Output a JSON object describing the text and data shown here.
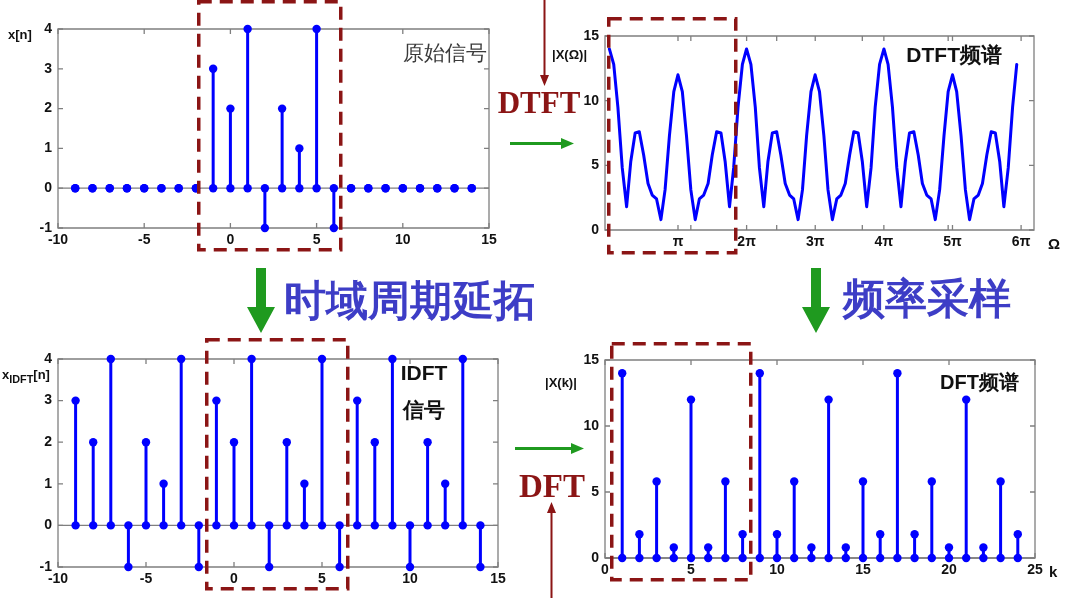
{
  "chart_data": [
    {
      "type": "lollipop",
      "title": "原始信号",
      "ylabel": "x[n]",
      "x": [
        -9,
        -8,
        -7,
        -6,
        -5,
        -4,
        -3,
        -2,
        -1,
        0,
        1,
        2,
        3,
        4,
        5,
        6,
        7,
        8,
        9,
        10,
        11,
        12,
        13,
        14
      ],
      "series": [
        {
          "color": "#0000ff",
          "values": [
            0,
            0,
            0,
            0,
            0,
            0,
            0,
            0,
            3,
            2,
            4,
            -1,
            2,
            1,
            4,
            -1,
            0,
            0,
            0,
            0,
            0,
            0,
            0,
            0
          ]
        },
        {
          "type": "scatter",
          "color": "#0000ff",
          "values": [
            0,
            0,
            0,
            0,
            0,
            0,
            0,
            0,
            0,
            0,
            0,
            0,
            0,
            0,
            0,
            0,
            0,
            0,
            0,
            0,
            0,
            0,
            0,
            0
          ]
        }
      ],
      "marker": "circle",
      "xlim": [
        -10,
        15
      ],
      "xticks": [
        -10,
        -5,
        0,
        5,
        10,
        15
      ],
      "ylim": [
        -1,
        4
      ],
      "yticks": [
        -1,
        0,
        1,
        2,
        3,
        4
      ]
    },
    {
      "type": "line",
      "title": "DTFT频谱",
      "ylabel": "|X(Ω)|",
      "xlabel": "Ω",
      "annotations": [
        "DTFT"
      ],
      "x": [
        0,
        0.2,
        0.39,
        0.59,
        0.79,
        0.98,
        1.18,
        1.37,
        1.57,
        1.77,
        1.96,
        2.16,
        2.36,
        2.55,
        2.75,
        2.95,
        3.14,
        3.34,
        3.53,
        3.73,
        3.93,
        4.12,
        4.32,
        4.52,
        4.71,
        4.91,
        5.11,
        5.3,
        5.5,
        5.69,
        5.89,
        6.09,
        6.28,
        6.48,
        6.68,
        6.87,
        7.07,
        7.26,
        7.46,
        7.66,
        7.85,
        8.05,
        8.25,
        8.44,
        8.64,
        8.84,
        9.03,
        9.23,
        9.42,
        9.62,
        9.82,
        10.01,
        10.21,
        10.41,
        10.6,
        10.8,
        11,
        11.19,
        11.39,
        11.58,
        11.78,
        11.98,
        12.17,
        12.37,
        12.57,
        12.76,
        12.96,
        13.16,
        13.35,
        13.55,
        13.74,
        13.94,
        14.14,
        14.33,
        14.53,
        14.73,
        14.92,
        15.12,
        15.32,
        15.51,
        15.71,
        15.9,
        16.1,
        16.3,
        16.49,
        16.69,
        16.89,
        17.08,
        17.28,
        17.48,
        17.67,
        17.87,
        18.06,
        18.26,
        18.46,
        18.65
      ],
      "values": [
        14,
        12.8,
        9.5,
        4.8,
        1.8,
        5.3,
        7.5,
        7.6,
        5.8,
        3.6,
        2.7,
        2.4,
        0.8,
        3.1,
        7.3,
        10.7,
        12,
        10.7,
        7.3,
        3.1,
        0.8,
        2.4,
        2.7,
        3.6,
        5.8,
        7.6,
        7.5,
        5.3,
        1.8,
        4.8,
        9.5,
        12.8,
        14,
        12.8,
        9.5,
        4.8,
        1.8,
        5.3,
        7.5,
        7.6,
        5.8,
        3.6,
        2.7,
        2.4,
        0.8,
        3.1,
        7.3,
        10.7,
        12,
        10.7,
        7.3,
        3.1,
        0.8,
        2.4,
        2.7,
        3.6,
        5.8,
        7.6,
        7.5,
        5.3,
        1.8,
        4.8,
        9.5,
        12.8,
        14,
        12.8,
        9.5,
        4.8,
        1.8,
        5.3,
        7.5,
        7.6,
        5.8,
        3.6,
        2.7,
        2.4,
        0.8,
        3.1,
        7.3,
        10.7,
        12,
        10.7,
        7.3,
        3.1,
        0.8,
        2.4,
        2.7,
        3.6,
        5.8,
        7.6,
        7.5,
        5.3,
        1.8,
        4.8,
        9.5,
        12.8
      ],
      "color": "#0000ff",
      "xlim": [
        -0.2,
        19.44
      ],
      "xticks": [
        {
          "value": 3.1416,
          "label": "π"
        },
        {
          "value": 3.73,
          "label": null
        },
        {
          "value": 6.2832,
          "label": "2π"
        },
        {
          "value": 7.66,
          "label": null
        },
        {
          "value": 9.4248,
          "label": "3π"
        },
        {
          "value": 11.58,
          "label": null
        },
        {
          "value": 12.5664,
          "label": "4π"
        },
        {
          "value": 15.51,
          "label": null
        },
        {
          "value": 15.708,
          "label": "5π"
        },
        {
          "value": 18.8496,
          "label": "6π"
        }
      ],
      "ylim": [
        0,
        15
      ],
      "yticks": [
        0,
        5,
        10,
        15
      ]
    },
    {
      "type": "lollipop",
      "title": "IDFT 信号",
      "ylabel": "x$_{IDFT}$[n]",
      "annotations": [
        "时域周期延拓"
      ],
      "x": [
        -9,
        -8,
        -7,
        -6,
        -5,
        -4,
        -3,
        -2,
        -1,
        0,
        1,
        2,
        3,
        4,
        5,
        6,
        7,
        8,
        9,
        10,
        11,
        12,
        13,
        14
      ],
      "series": [
        {
          "color": "#0000ff",
          "values": [
            3,
            2,
            4,
            -1,
            2,
            1,
            4,
            -1,
            3,
            2,
            4,
            -1,
            2,
            1,
            4,
            -1,
            3,
            2,
            4,
            -1,
            2,
            1,
            4,
            -1
          ]
        },
        {
          "type": "scatter",
          "color": "#0000ff",
          "values": [
            0,
            0,
            0,
            0,
            0,
            0,
            0,
            0,
            0,
            0,
            0,
            0,
            0,
            0,
            0,
            0,
            0,
            0,
            0,
            0,
            0,
            0,
            0,
            0
          ]
        }
      ],
      "marker": "circle",
      "xlim": [
        -10,
        15
      ],
      "xticks": [
        -10,
        -5,
        0,
        5,
        10,
        15
      ],
      "ylim": [
        -1,
        4
      ],
      "yticks": [
        -1,
        0,
        1,
        2,
        3,
        4
      ]
    },
    {
      "type": "lollipop",
      "title": "DFT频谱",
      "ylabel": "|X(k)|",
      "xlabel": "k",
      "annotations": [
        "频率采样",
        "DFT"
      ],
      "x": [
        1,
        2,
        3,
        4,
        5,
        6,
        7,
        8,
        9,
        10,
        11,
        12,
        13,
        14,
        15,
        16,
        17,
        18,
        19,
        20,
        21,
        22,
        23,
        24
      ],
      "series": [
        {
          "color": "#0000ff",
          "values": [
            14,
            1.8,
            5.8,
            0.8,
            12,
            0.8,
            5.8,
            1.8,
            14,
            1.8,
            5.8,
            0.8,
            12,
            0.8,
            5.8,
            1.8,
            14,
            1.8,
            5.8,
            0.8,
            12,
            0.8,
            5.8,
            1.8
          ]
        },
        {
          "type": "scatter",
          "color": "#0000ff",
          "values": [
            0,
            0,
            0,
            0,
            0,
            0,
            0,
            0,
            0,
            0,
            0,
            0,
            0,
            0,
            0,
            0,
            0,
            0,
            0,
            0,
            0,
            0,
            0,
            0
          ]
        }
      ],
      "marker": "circle",
      "xlim": [
        0,
        25
      ],
      "xticks": [
        0,
        5,
        10,
        15,
        20,
        25
      ],
      "ylim": [
        0,
        15
      ],
      "yticks": [
        0,
        5,
        10,
        15
      ]
    }
  ]
}
